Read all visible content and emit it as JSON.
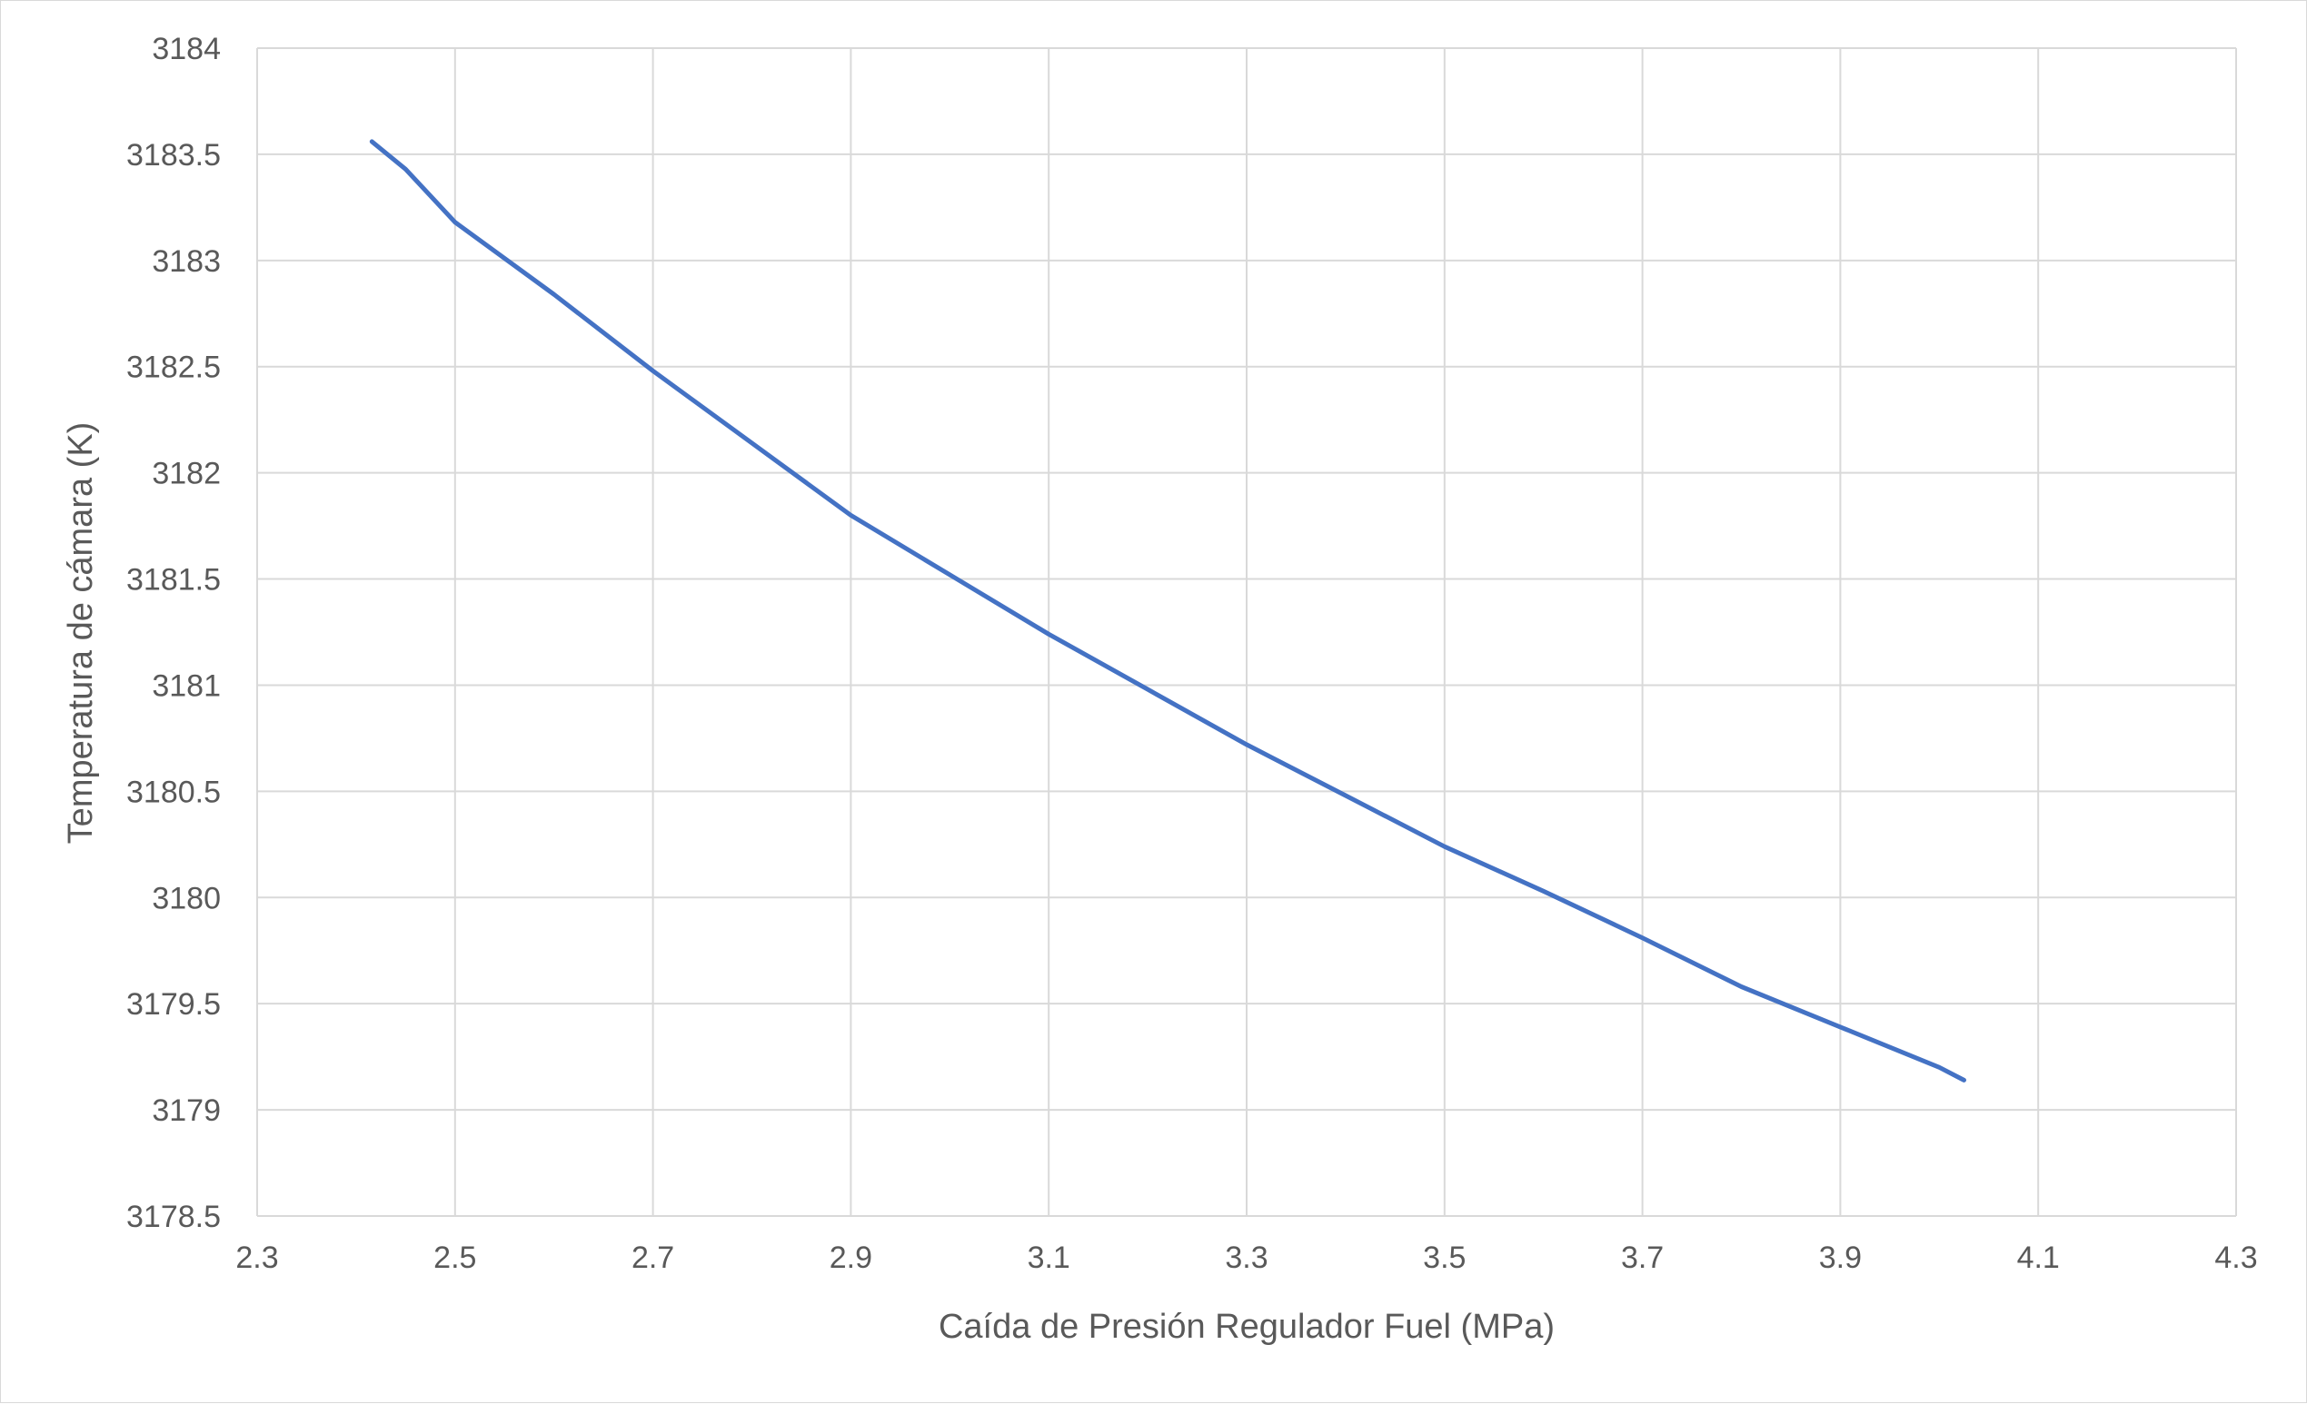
{
  "chart_data": {
    "type": "line",
    "xlabel": "Caída de Presión Regulador Fuel (MPa)",
    "ylabel": "Temperatura de cámara (K)",
    "xlim": [
      2.3,
      4.3
    ],
    "ylim": [
      3178.5,
      3184
    ],
    "x_ticks": [
      "2.3",
      "2.5",
      "2.7",
      "2.9",
      "3.1",
      "3.3",
      "3.5",
      "3.7",
      "3.9",
      "4.1",
      "4.3"
    ],
    "y_ticks": [
      "3178.5",
      "3179",
      "3179.5",
      "3180",
      "3180.5",
      "3181",
      "3181.5",
      "3182",
      "3182.5",
      "3183",
      "3183.5",
      "3184"
    ],
    "grid": true,
    "line_color": "#4472C4",
    "grid_color": "#d9d9d9",
    "series": [
      {
        "x": [
          2.416,
          2.45,
          2.5,
          2.6,
          2.7,
          2.8,
          2.9,
          3.0,
          3.1,
          3.2,
          3.3,
          3.4,
          3.5,
          3.6,
          3.7,
          3.8,
          3.9,
          4.0,
          4.025
        ],
        "y": [
          3183.56,
          3183.43,
          3183.18,
          3182.84,
          3182.48,
          3182.14,
          3181.8,
          3181.52,
          3181.24,
          3180.98,
          3180.72,
          3180.48,
          3180.24,
          3180.03,
          3179.81,
          3179.58,
          3179.39,
          3179.2,
          3179.14
        ]
      }
    ]
  }
}
